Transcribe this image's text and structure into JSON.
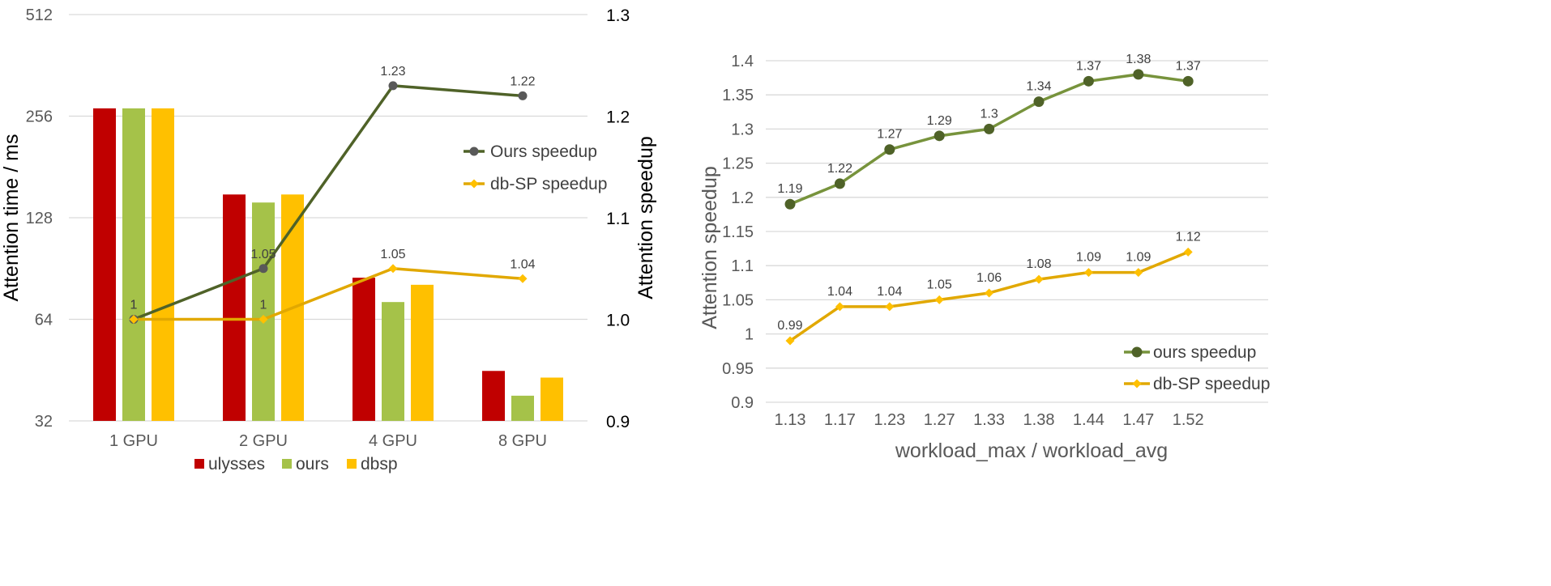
{
  "chart_data": [
    {
      "type": "bar",
      "categories": [
        "1 GPU",
        "2 GPU",
        "4 GPU",
        "8 GPU"
      ],
      "series": [
        {
          "name": "ulysses",
          "color": "#c00000",
          "values": [
            270,
            150,
            85,
            45
          ]
        },
        {
          "name": "ours",
          "color": "#a5c249",
          "values": [
            270,
            142,
            72,
            38
          ]
        },
        {
          "name": "dbsp",
          "color": "#ffc000",
          "values": [
            270,
            150,
            81,
            43
          ]
        }
      ],
      "line_series": [
        {
          "name": "Ours speedup",
          "color": "#4f6228",
          "marker": "circle",
          "marker_color": "#595959",
          "values": [
            1,
            1.05,
            1.23,
            1.22
          ],
          "labels": [
            "1",
            "1.05",
            "1.23",
            "1.22"
          ]
        },
        {
          "name": "db-SP speedup",
          "color": "#e1a800",
          "marker": "diamond",
          "marker_color": "#ffc000",
          "values": [
            1,
            1,
            1.05,
            1.04
          ],
          "labels": [
            "1",
            "1",
            "1.05",
            "1.04"
          ]
        }
      ],
      "ylabel": "Attention time / ms",
      "y_scale": "log2",
      "ylim": [
        32,
        512
      ],
      "y_ticks": [
        "32",
        "64",
        "128",
        "256",
        "512"
      ],
      "y2label": "Attention speedup",
      "y2lim": [
        0.9,
        1.3
      ],
      "y2_ticks": [
        "0.9",
        "1.0",
        "1.1",
        "1.2",
        "1.3"
      ],
      "grid": true,
      "legend_placement": "bottom (bars), right (lines)"
    },
    {
      "type": "line",
      "x": [
        "1.13",
        "1.17",
        "1.23",
        "1.27",
        "1.33",
        "1.38",
        "1.44",
        "1.47",
        "1.52"
      ],
      "series": [
        {
          "name": "ours speedup",
          "color": "#77933c",
          "marker": "circle",
          "marker_color": "#4f6228",
          "values": [
            1.19,
            1.22,
            1.27,
            1.29,
            1.3,
            1.34,
            1.37,
            1.38,
            1.37
          ],
          "labels": [
            "1.19",
            "1.22",
            "1.27",
            "1.29",
            "1.3",
            "1.34",
            "1.37",
            "1.38",
            "1.37"
          ]
        },
        {
          "name": "db-SP speedup",
          "color": "#e1a800",
          "marker": "diamond",
          "marker_color": "#ffc000",
          "values": [
            0.99,
            1.04,
            1.04,
            1.05,
            1.06,
            1.08,
            1.09,
            1.09,
            1.12
          ],
          "labels": [
            "0.99",
            "1.04",
            "1.04",
            "1.05",
            "1.06",
            "1.08",
            "1.09",
            "1.09",
            "1.12"
          ]
        }
      ],
      "xlabel": "workload_max / workload_avg",
      "ylabel": "Attention speedup",
      "ylim": [
        0.9,
        1.4
      ],
      "y_ticks": [
        "0.9",
        "0.95",
        "1",
        "1.05",
        "1.1",
        "1.15",
        "1.2",
        "1.25",
        "1.3",
        "1.35",
        "1.4"
      ],
      "grid": true,
      "legend_placement": "bottom-right"
    }
  ]
}
